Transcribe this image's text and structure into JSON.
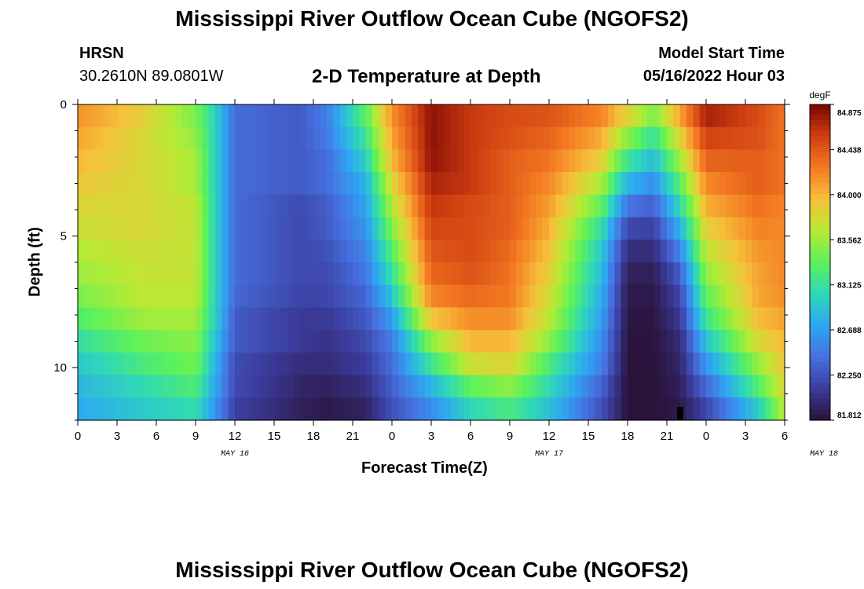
{
  "header": {
    "title": "Mississippi River Outflow Ocean Cube (NGOFS2)",
    "station": "HRSN",
    "coords": "30.2610N  89.0801W",
    "plot_title": "2-D Temperature at Depth",
    "model_label": "Model Start Time",
    "model_time": "05/16/2022 Hour 03"
  },
  "footer": {
    "title": "Mississippi River Outflow Ocean Cube (NGOFS2)"
  },
  "colors": {
    "colormap": [
      "#2a1238",
      "#3b3c9c",
      "#4670e0",
      "#2ea7f2",
      "#2ed8b8",
      "#5cf25a",
      "#b8ea34",
      "#f6c13a",
      "#f47a22",
      "#cf3e11",
      "#7a0403"
    ]
  },
  "chart_data": {
    "type": "heatmap",
    "title": "2-D Temperature at Depth",
    "xlabel": "Forecast Time(Z)",
    "ylabel": "Depth (ft)",
    "colorbar_unit": "degF",
    "x_ticks": [
      "0",
      "3",
      "6",
      "9",
      "12",
      "15",
      "18",
      "21",
      "0",
      "3",
      "6",
      "9",
      "12",
      "15",
      "18",
      "21",
      "0",
      "3",
      "6"
    ],
    "date_labels": [
      {
        "label": "MAY 16",
        "hour": 12
      },
      {
        "label": "MAY 17",
        "hour": 36
      },
      {
        "label": "MAY 18",
        "hour": 57
      }
    ],
    "y_ticks": [
      "0",
      "5",
      "10"
    ],
    "xlim": [
      0,
      54
    ],
    "ylim": [
      0,
      12
    ],
    "zlim": [
      81.812,
      84.875
    ],
    "colorbar_ticks": [
      "84.875",
      "84.438",
      "84.000",
      "83.562",
      "83.125",
      "82.688",
      "82.250",
      "81.812"
    ],
    "depths": [
      0,
      1,
      2,
      3,
      4,
      5,
      6,
      7,
      8,
      9,
      10,
      11,
      12
    ],
    "time_hours": [
      0,
      5,
      9,
      10.5,
      12,
      17,
      19,
      22,
      24,
      27,
      30,
      33,
      36,
      40,
      42,
      44,
      46,
      48,
      52,
      54
    ],
    "temperature_grid": [
      [
        84.2,
        83.9,
        83.4,
        83.0,
        82.4,
        82.3,
        82.5,
        83.4,
        84.2,
        84.8,
        84.6,
        84.5,
        84.5,
        84.3,
        84.0,
        83.6,
        84.2,
        84.8,
        84.5,
        84.3
      ],
      [
        84.1,
        83.8,
        83.5,
        83.0,
        82.4,
        82.3,
        82.5,
        83.2,
        84.1,
        84.8,
        84.6,
        84.5,
        84.4,
        84.1,
        83.6,
        83.2,
        83.9,
        84.6,
        84.5,
        84.3
      ],
      [
        84.0,
        83.8,
        83.6,
        83.0,
        82.4,
        82.3,
        82.4,
        83.0,
        84.0,
        84.8,
        84.6,
        84.4,
        84.3,
        83.9,
        83.2,
        82.9,
        83.6,
        84.4,
        84.4,
        84.3
      ],
      [
        83.9,
        83.8,
        83.6,
        83.0,
        82.4,
        82.3,
        82.4,
        82.8,
        83.8,
        84.7,
        84.6,
        84.4,
        84.2,
        83.6,
        82.8,
        82.6,
        83.3,
        84.2,
        84.4,
        84.3
      ],
      [
        83.8,
        83.8,
        83.7,
        83.0,
        82.4,
        82.2,
        82.3,
        82.7,
        83.6,
        84.6,
        84.5,
        84.4,
        84.1,
        83.3,
        82.4,
        82.3,
        83.0,
        84.0,
        84.3,
        84.2
      ],
      [
        83.7,
        83.8,
        83.7,
        83.0,
        82.4,
        82.2,
        82.3,
        82.6,
        83.4,
        84.5,
        84.5,
        84.4,
        84.0,
        83.0,
        82.1,
        82.1,
        82.7,
        83.8,
        84.2,
        84.2
      ],
      [
        83.6,
        83.7,
        83.7,
        83.0,
        82.4,
        82.2,
        82.2,
        82.5,
        83.2,
        84.4,
        84.5,
        84.3,
        83.9,
        82.9,
        81.95,
        81.95,
        82.4,
        83.6,
        84.1,
        84.2
      ],
      [
        83.5,
        83.7,
        83.7,
        83.0,
        82.4,
        82.2,
        82.2,
        82.4,
        83.0,
        84.3,
        84.4,
        84.3,
        83.8,
        82.8,
        81.88,
        81.88,
        82.2,
        83.4,
        84.1,
        84.2
      ],
      [
        83.3,
        83.6,
        83.6,
        83.0,
        82.3,
        82.1,
        82.1,
        82.3,
        82.7,
        84.0,
        84.2,
        84.2,
        83.7,
        82.7,
        81.85,
        81.85,
        82.1,
        83.2,
        84.0,
        84.1
      ],
      [
        83.1,
        83.4,
        83.5,
        82.9,
        82.3,
        82.1,
        82.05,
        82.2,
        82.5,
        83.5,
        84.0,
        84.0,
        83.5,
        82.6,
        81.83,
        81.83,
        82.0,
        82.9,
        83.8,
        84.0
      ],
      [
        82.9,
        83.2,
        83.4,
        82.8,
        82.2,
        82.0,
        82.0,
        82.1,
        82.4,
        83.1,
        83.7,
        83.8,
        83.2,
        82.5,
        81.82,
        81.82,
        81.95,
        82.6,
        83.5,
        83.9
      ],
      [
        82.8,
        83.0,
        83.2,
        82.7,
        82.2,
        81.95,
        81.9,
        82.0,
        82.3,
        82.7,
        83.2,
        83.4,
        83.0,
        82.3,
        81.82,
        81.82,
        81.9,
        82.3,
        83.2,
        83.8
      ],
      [
        82.7,
        82.9,
        83.0,
        82.6,
        82.1,
        81.9,
        81.85,
        81.9,
        82.2,
        82.5,
        82.9,
        83.1,
        82.8,
        82.2,
        81.82,
        81.82,
        81.85,
        82.1,
        82.8,
        83.6
      ]
    ]
  }
}
